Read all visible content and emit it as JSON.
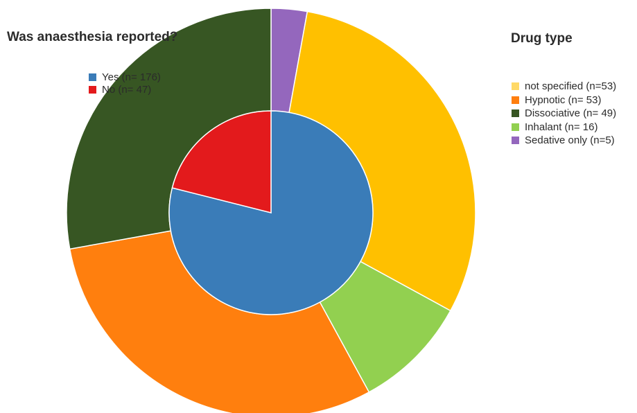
{
  "chart_data": {
    "type": "pie",
    "inner": {
      "title": "Was anaesthesia reported?",
      "slices": [
        {
          "label": "Yes (n= 176)",
          "value": 176,
          "color": "#3a7cb8"
        },
        {
          "label": "No (n= 47)",
          "value": 47,
          "color": "#e31a1c"
        }
      ]
    },
    "outer": {
      "title": "Drug type",
      "slices": [
        {
          "label": "not specified (n=53)",
          "value": 53,
          "color": "#ffc000"
        },
        {
          "label": "Hypnotic (n= 53)",
          "value": 53,
          "color": "#ff7f0e"
        },
        {
          "label": "Dissociative (n= 49)",
          "value": 49,
          "color": "#375623"
        },
        {
          "label": "Inhalant (n= 16)",
          "value": 16,
          "color": "#92d050"
        },
        {
          "label": "Sedative only (n=5)",
          "value": 5,
          "color": "#9467bd"
        }
      ],
      "legend_colors": [
        "#ffd966",
        "#ff7f0e",
        "#375623",
        "#92d050",
        "#9467bd"
      ]
    }
  }
}
